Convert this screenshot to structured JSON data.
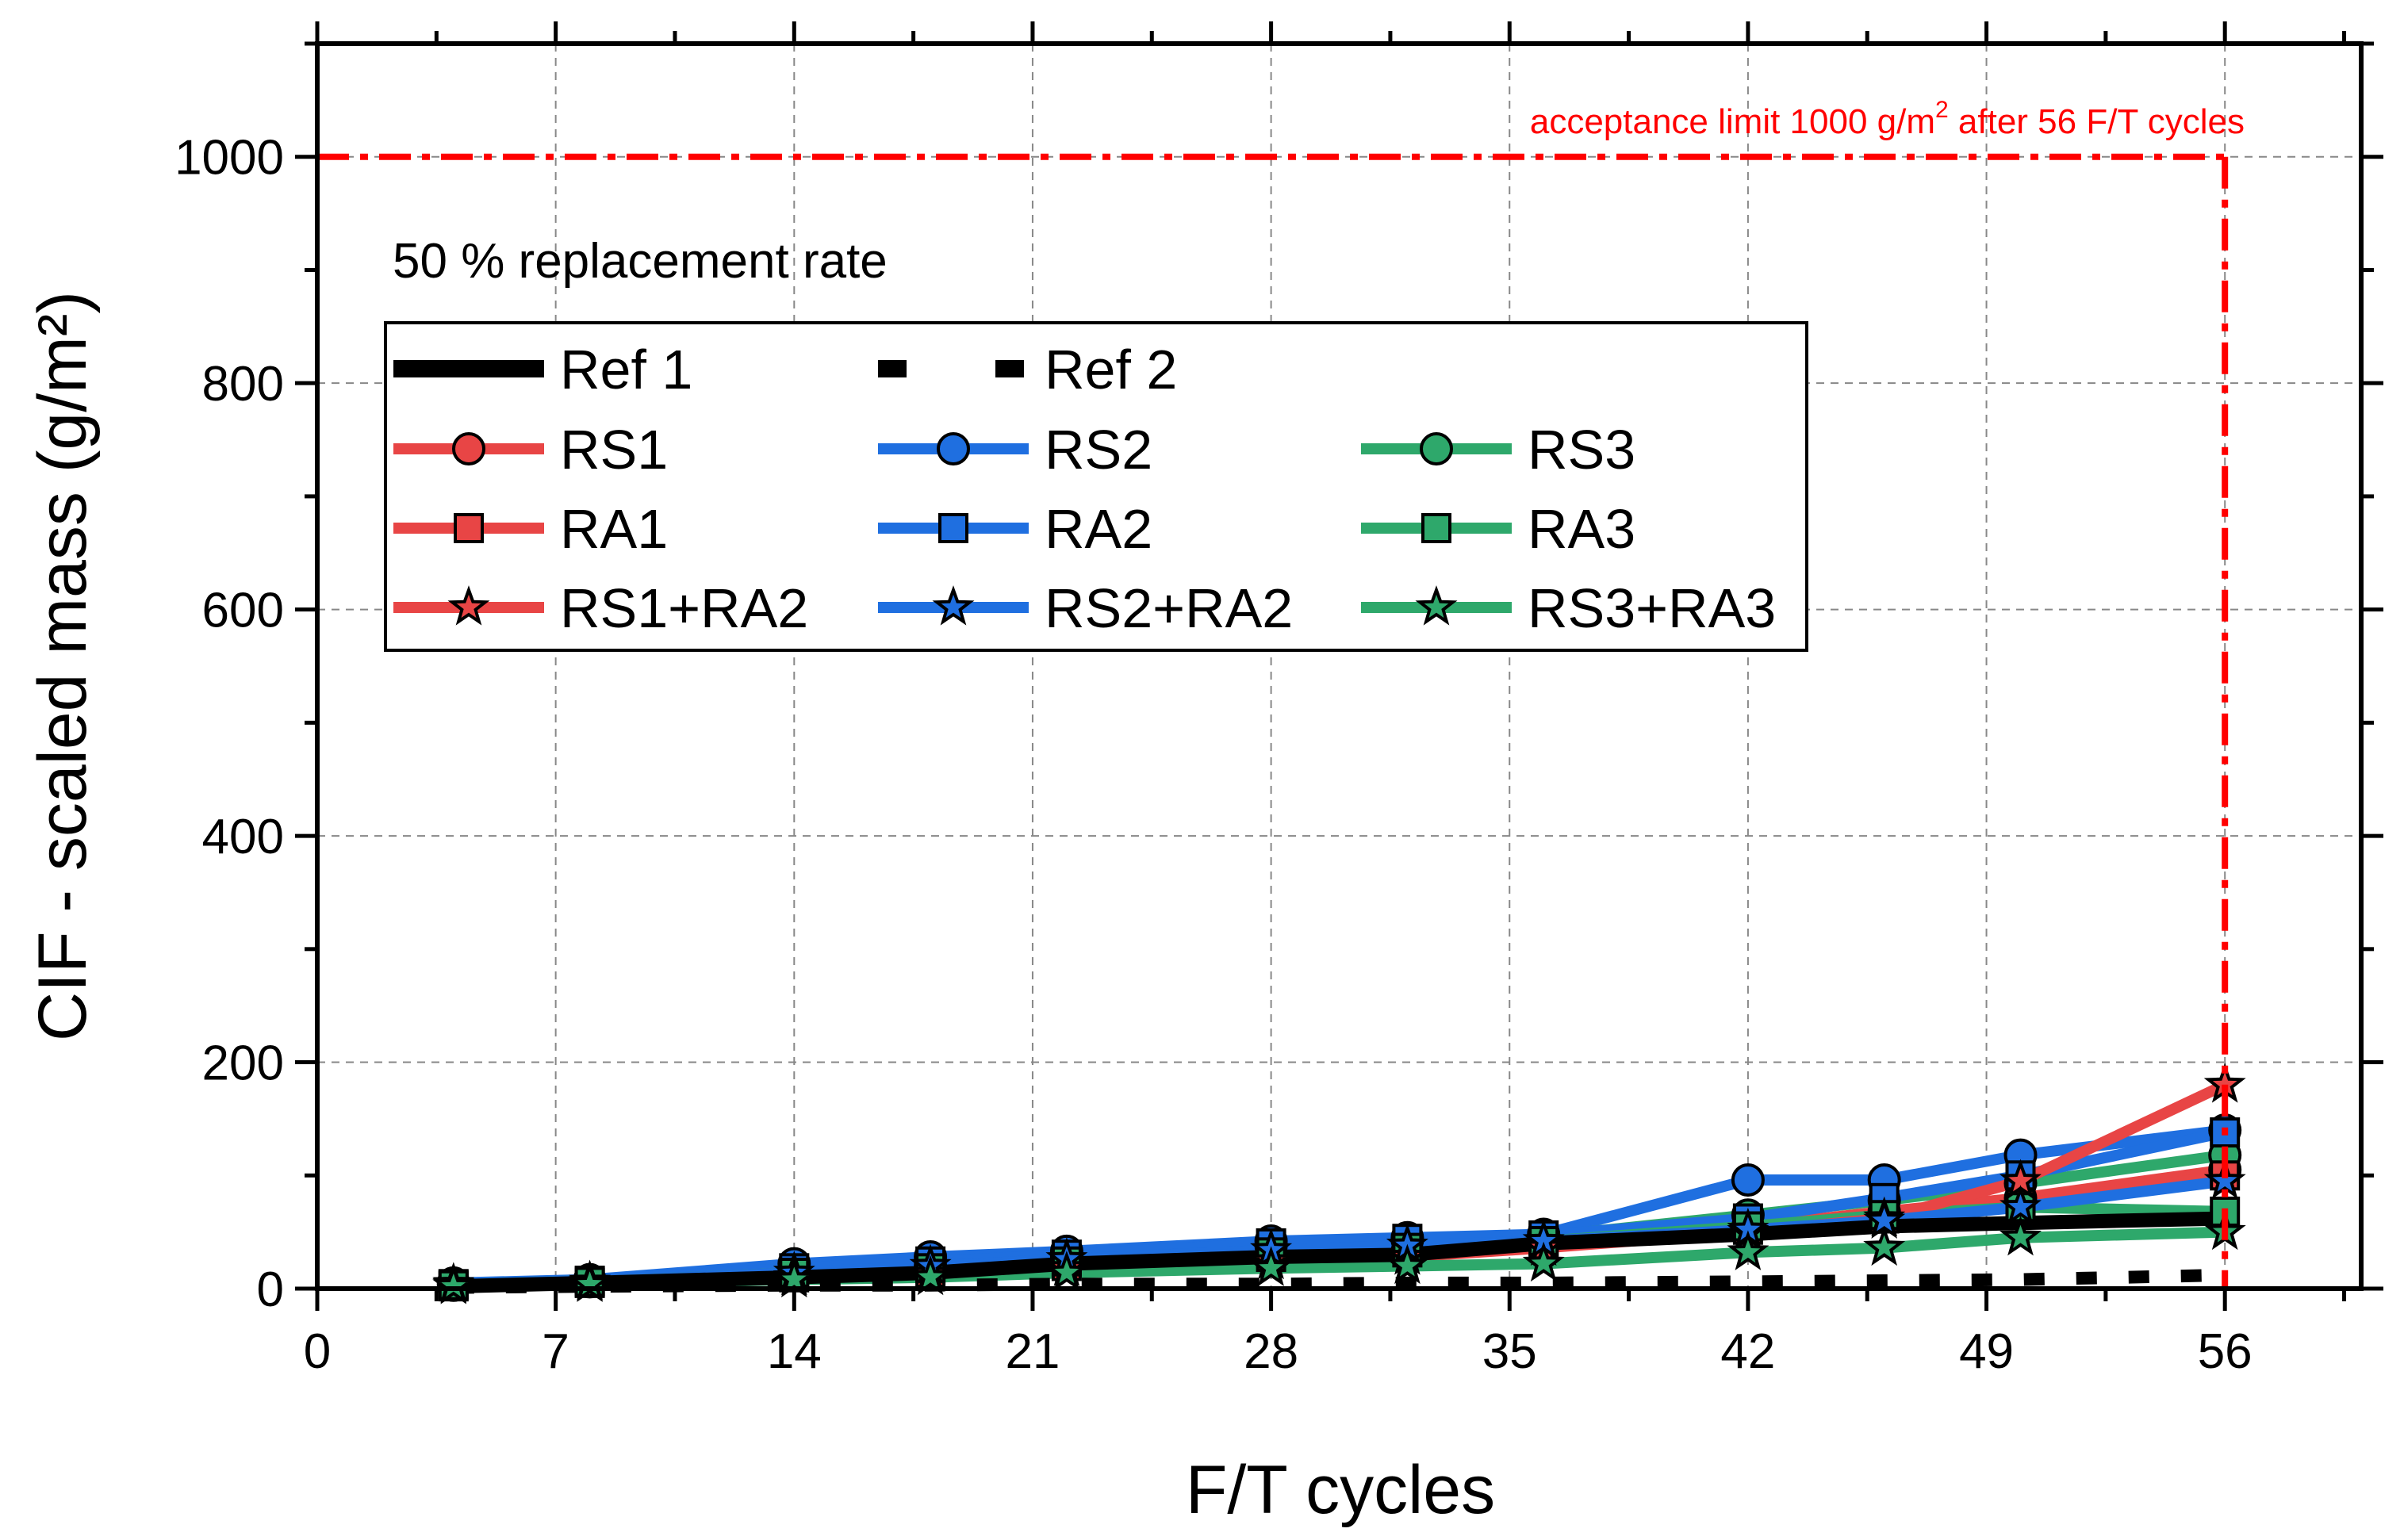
{
  "chart_data": {
    "type": "line",
    "title": "",
    "xlabel": "F/T cycles",
    "ylabel": "CIF - scaled mass (g/m²)",
    "xlim": [
      0,
      60
    ],
    "ylim": [
      0,
      1100
    ],
    "xticks": [
      0,
      7,
      14,
      21,
      28,
      35,
      42,
      49,
      56
    ],
    "yticks": [
      0,
      200,
      400,
      600,
      800,
      1000
    ],
    "grid": true,
    "annotation": "50 % replacement rate",
    "acceptance_limit": {
      "value": 1000,
      "cycles": 56,
      "label_prefix": "acceptance limit 1000 g/m",
      "label_sup": "2",
      "label_suffix": " after 56 F/T cycles",
      "color": "#ff0000"
    },
    "series": [
      {
        "name": "Ref 1",
        "style": "solid",
        "color": "#000000",
        "marker": "none",
        "x": [
          4,
          8,
          14,
          18,
          22,
          28,
          32,
          36,
          42,
          46,
          50,
          56
        ],
        "y": [
          2,
          5,
          10,
          14,
          22,
          28,
          30,
          40,
          48,
          55,
          58,
          62
        ]
      },
      {
        "name": "Ref 2",
        "style": "dash",
        "color": "#000000",
        "marker": "none",
        "x": [
          4,
          8,
          14,
          18,
          22,
          28,
          32,
          36,
          42,
          46,
          50,
          56
        ],
        "y": [
          1,
          2,
          3,
          3,
          4,
          4,
          5,
          5,
          6,
          7,
          8,
          12
        ]
      },
      {
        "name": "RS1",
        "style": "solid",
        "color": "#e84545",
        "marker": "circle",
        "x": [
          4,
          8,
          14,
          18,
          22,
          28,
          32,
          36,
          42,
          46,
          50,
          56
        ],
        "y": [
          3,
          6,
          12,
          16,
          24,
          30,
          33,
          42,
          55,
          68,
          80,
          105
        ]
      },
      {
        "name": "RS2",
        "style": "solid",
        "color": "#1f6fe0",
        "marker": "circle",
        "x": [
          4,
          8,
          14,
          18,
          22,
          28,
          32,
          36,
          42,
          46,
          50,
          56
        ],
        "y": [
          5,
          8,
          22,
          28,
          33,
          42,
          45,
          48,
          96,
          96,
          118,
          140
        ]
      },
      {
        "name": "RS3",
        "style": "solid",
        "color": "#2ea86b",
        "marker": "circle",
        "x": [
          4,
          8,
          14,
          18,
          22,
          28,
          32,
          36,
          42,
          46,
          50,
          56
        ],
        "y": [
          4,
          7,
          15,
          20,
          28,
          38,
          43,
          46,
          65,
          78,
          93,
          118
        ]
      },
      {
        "name": "RA1",
        "style": "solid",
        "color": "#e84545",
        "marker": "square",
        "x": [
          4,
          8,
          14,
          18,
          22,
          28,
          32,
          36,
          42,
          46,
          50,
          56
        ],
        "y": [
          2,
          5,
          10,
          14,
          20,
          28,
          32,
          40,
          52,
          62,
          75,
          100
        ]
      },
      {
        "name": "RA2",
        "style": "solid",
        "color": "#1f6fe0",
        "marker": "square",
        "x": [
          4,
          8,
          14,
          18,
          22,
          28,
          32,
          36,
          42,
          46,
          50,
          56
        ],
        "y": [
          4,
          7,
          18,
          24,
          30,
          40,
          44,
          47,
          62,
          80,
          100,
          138
        ]
      },
      {
        "name": "RA3",
        "style": "solid",
        "color": "#2ea86b",
        "marker": "square",
        "x": [
          4,
          8,
          14,
          18,
          22,
          28,
          32,
          36,
          42,
          46,
          50,
          56
        ],
        "y": [
          3,
          6,
          14,
          18,
          24,
          32,
          36,
          42,
          55,
          65,
          72,
          68
        ]
      },
      {
        "name": "RS1+RA2",
        "style": "solid",
        "color": "#e84545",
        "marker": "star",
        "x": [
          4,
          8,
          14,
          18,
          22,
          28,
          32,
          36,
          42,
          46,
          50,
          56
        ],
        "y": [
          3,
          5,
          10,
          13,
          18,
          24,
          28,
          36,
          50,
          62,
          95,
          180
        ]
      },
      {
        "name": "RS2+RA2",
        "style": "solid",
        "color": "#1f6fe0",
        "marker": "star",
        "x": [
          4,
          8,
          14,
          18,
          22,
          28,
          32,
          36,
          42,
          46,
          50,
          56
        ],
        "y": [
          4,
          6,
          14,
          20,
          26,
          34,
          38,
          42,
          52,
          60,
          72,
          95
        ]
      },
      {
        "name": "RS3+RA3",
        "style": "solid",
        "color": "#2ea86b",
        "marker": "star",
        "x": [
          4,
          8,
          14,
          18,
          22,
          28,
          32,
          36,
          42,
          46,
          50,
          56
        ],
        "y": [
          2,
          4,
          8,
          10,
          14,
          18,
          20,
          22,
          32,
          36,
          45,
          50
        ]
      }
    ]
  }
}
